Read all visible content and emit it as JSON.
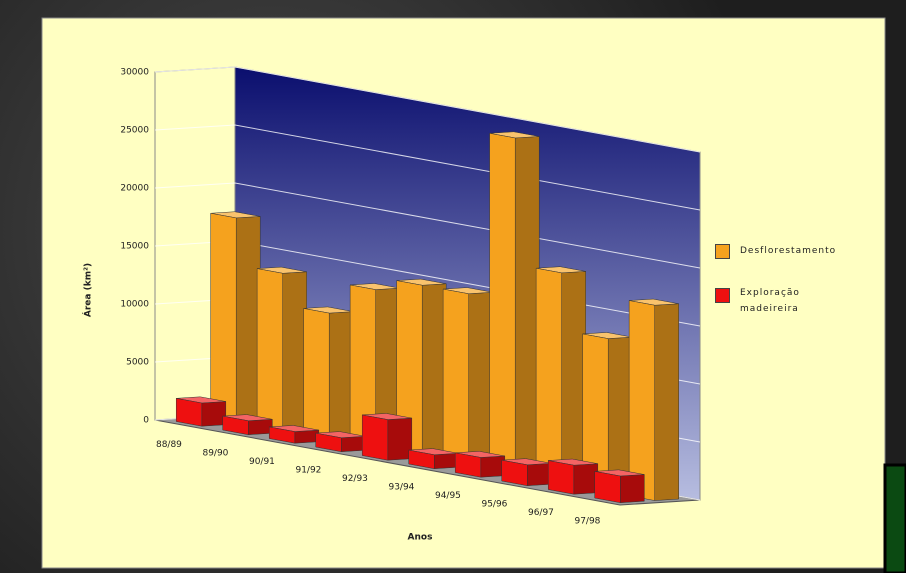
{
  "chart_data": {
    "type": "bar3d",
    "y_axis_label": "Área (km²)",
    "x_axis_label": "Anos",
    "categories": [
      "88/89",
      "89/90",
      "90/91",
      "91/92",
      "92/93",
      "93/94",
      "94/95",
      "95/96",
      "96/97",
      "97/98"
    ],
    "series": [
      {
        "name": "Desflorestamento",
        "color": "#f5a21e",
        "values": [
          17770,
          13730,
          11030,
          13786,
          14896,
          14896,
          29059,
          18161,
          13227,
          16838
        ]
      },
      {
        "name": "Exploração madeireira",
        "color": "#ee1010",
        "values": [
          2000,
          1200,
          1000,
          1200,
          3500,
          1200,
          1700,
          1800,
          2500,
          2300
        ]
      }
    ],
    "ylim": [
      0,
      30000
    ],
    "yticks": [
      0,
      5000,
      10000,
      15000,
      20000,
      25000,
      30000
    ],
    "grid": true
  }
}
